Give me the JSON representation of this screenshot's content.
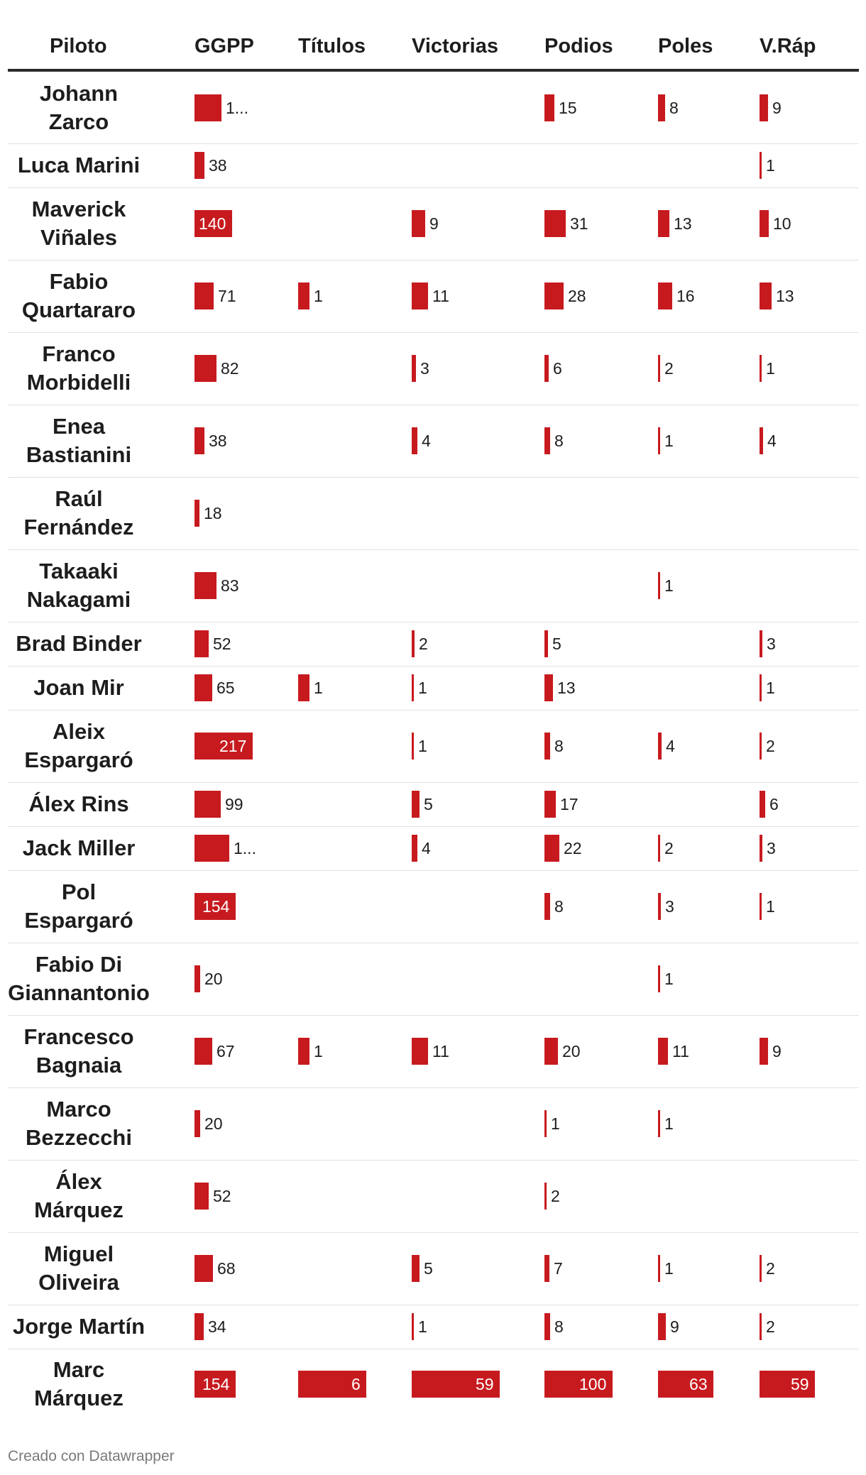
{
  "chart_data": {
    "type": "table",
    "columns": [
      "Piloto",
      "GGPP",
      "Títulos",
      "Victorias",
      "Podios",
      "Poles",
      "V.Ráp"
    ],
    "rows": [
      {
        "piloto": "Johann Zarco",
        "ggpp": 100,
        "ggpp_label": "1...",
        "titulos": null,
        "victorias": null,
        "podios": 15,
        "poles": 8,
        "vrap": 9
      },
      {
        "piloto": "Luca Marini",
        "ggpp": 38,
        "titulos": null,
        "victorias": null,
        "podios": null,
        "poles": null,
        "vrap": 1
      },
      {
        "piloto": "Maverick Viñales",
        "ggpp": 140,
        "titulos": null,
        "victorias": 9,
        "podios": 31,
        "poles": 13,
        "vrap": 10
      },
      {
        "piloto": "Fabio Quartararo",
        "ggpp": 71,
        "titulos": 1,
        "victorias": 11,
        "podios": 28,
        "poles": 16,
        "vrap": 13
      },
      {
        "piloto": "Franco Morbidelli",
        "ggpp": 82,
        "titulos": null,
        "victorias": 3,
        "podios": 6,
        "poles": 2,
        "vrap": 1
      },
      {
        "piloto": "Enea Bastianini",
        "ggpp": 38,
        "titulos": null,
        "victorias": 4,
        "podios": 8,
        "poles": 1,
        "vrap": 4
      },
      {
        "piloto": "Raúl Fernández",
        "ggpp": 18,
        "titulos": null,
        "victorias": null,
        "podios": null,
        "poles": null,
        "vrap": null
      },
      {
        "piloto": "Takaaki Nakagami",
        "ggpp": 83,
        "titulos": null,
        "victorias": null,
        "podios": null,
        "poles": 1,
        "vrap": null
      },
      {
        "piloto": "Brad Binder",
        "ggpp": 52,
        "titulos": null,
        "victorias": 2,
        "podios": 5,
        "poles": null,
        "vrap": 3
      },
      {
        "piloto": "Joan Mir",
        "ggpp": 65,
        "titulos": 1,
        "victorias": 1,
        "podios": 13,
        "poles": null,
        "vrap": 1
      },
      {
        "piloto": "Aleix Espargaró",
        "ggpp": 217,
        "titulos": null,
        "victorias": 1,
        "podios": 8,
        "poles": 4,
        "vrap": 2
      },
      {
        "piloto": "Álex Rins",
        "ggpp": 99,
        "titulos": null,
        "victorias": 5,
        "podios": 17,
        "poles": null,
        "vrap": 6
      },
      {
        "piloto": "Jack Miller",
        "ggpp": 130,
        "ggpp_label": "1...",
        "titulos": null,
        "victorias": 4,
        "podios": 22,
        "poles": 2,
        "vrap": 3
      },
      {
        "piloto": "Pol Espargaró",
        "ggpp": 154,
        "titulos": null,
        "victorias": null,
        "podios": 8,
        "poles": 3,
        "vrap": 1
      },
      {
        "piloto": "Fabio Di Giannantonio",
        "ggpp": 20,
        "titulos": null,
        "victorias": null,
        "podios": null,
        "poles": 1,
        "vrap": null
      },
      {
        "piloto": "Francesco Bagnaia",
        "ggpp": 67,
        "titulos": 1,
        "victorias": 11,
        "podios": 20,
        "poles": 11,
        "vrap": 9
      },
      {
        "piloto": "Marco Bezzecchi",
        "ggpp": 20,
        "titulos": null,
        "victorias": null,
        "podios": 1,
        "poles": 1,
        "vrap": null
      },
      {
        "piloto": "Álex Márquez",
        "ggpp": 52,
        "titulos": null,
        "victorias": null,
        "podios": 2,
        "poles": null,
        "vrap": null
      },
      {
        "piloto": "Miguel Oliveira",
        "ggpp": 68,
        "titulos": null,
        "victorias": 5,
        "podios": 7,
        "poles": 1,
        "vrap": 2
      },
      {
        "piloto": "Jorge Martín",
        "ggpp": 34,
        "titulos": null,
        "victorias": 1,
        "podios": 8,
        "poles": 9,
        "vrap": 2
      },
      {
        "piloto": "Marc Márquez",
        "ggpp": 154,
        "titulos": 6,
        "victorias": 59,
        "podios": 100,
        "poles": 63,
        "vrap": 59
      }
    ],
    "column_max": {
      "ggpp": 217,
      "titulos": 6,
      "victorias": 59,
      "podios": 100,
      "poles": 63,
      "vrap": 59
    }
  },
  "colors": {
    "bar": "#c71a1f",
    "rule": "#2b2b2b",
    "separator": "#e2e2e2",
    "footer_text": "#7a7a7a"
  },
  "footer": "Creado con Datawrapper"
}
